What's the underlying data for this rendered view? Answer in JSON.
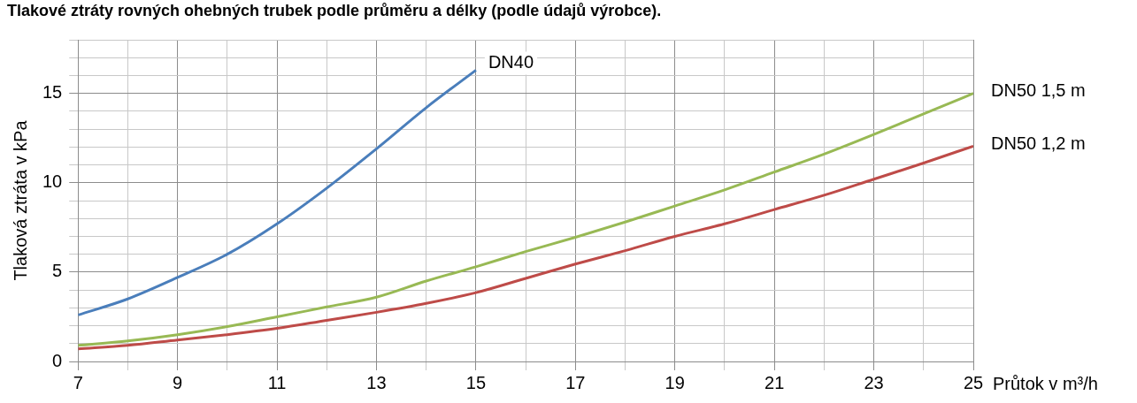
{
  "chart_data": {
    "type": "line",
    "title": "Tlakové ztráty rovných ohebných trubek podle průměru a délky (podle údajů výrobce).",
    "xlabel": "Průtok v m³/h",
    "ylabel": "Tlaková ztráta v kPa",
    "x": [
      7,
      8,
      9,
      10,
      11,
      12,
      13,
      14,
      15,
      16,
      17,
      18,
      19,
      20,
      21,
      22,
      23,
      24,
      25
    ],
    "series": [
      {
        "name": "DN40",
        "color": "#4a7ebb",
        "x": [
          7,
          8,
          9,
          10,
          11,
          12,
          13,
          14,
          15
        ],
        "values": [
          2.6,
          3.5,
          4.7,
          6.0,
          7.7,
          9.7,
          11.9,
          14.2,
          16.3
        ]
      },
      {
        "name": "DN50 1,5 m",
        "color": "#98b954",
        "values": [
          0.9,
          1.15,
          1.5,
          1.95,
          2.5,
          3.05,
          3.6,
          4.5,
          5.3,
          6.15,
          6.95,
          7.8,
          8.7,
          9.6,
          10.6,
          11.6,
          12.7,
          13.85,
          15.0
        ]
      },
      {
        "name": "DN50 1,2 m",
        "color": "#be4b48",
        "values": [
          0.7,
          0.9,
          1.2,
          1.5,
          1.85,
          2.3,
          2.75,
          3.25,
          3.85,
          4.65,
          5.45,
          6.2,
          7.0,
          7.7,
          8.5,
          9.3,
          10.2,
          11.1,
          12.05
        ]
      }
    ],
    "xlim": [
      7,
      25
    ],
    "xticks": [
      7,
      {
        "value": 8,
        "label": null
      },
      9,
      {
        "value": 10,
        "label": null
      },
      11,
      {
        "value": 12,
        "label": null
      },
      13,
      {
        "value": 14,
        "label": null
      },
      15,
      {
        "value": 16,
        "label": null
      },
      17,
      {
        "value": 18,
        "label": null
      },
      19,
      {
        "value": 20,
        "label": null
      },
      21,
      {
        "value": 22,
        "label": null
      },
      23,
      {
        "value": 24,
        "label": null
      },
      25
    ],
    "ylim": [
      0,
      18
    ],
    "yticks": [
      0,
      {
        "value": 1,
        "label": null
      },
      {
        "value": 2,
        "label": null
      },
      {
        "value": 3,
        "label": null
      },
      {
        "value": 4,
        "label": null
      },
      5,
      {
        "value": 6,
        "label": null
      },
      {
        "value": 7,
        "label": null
      },
      {
        "value": 8,
        "label": null
      },
      {
        "value": 9,
        "label": null
      },
      10,
      {
        "value": 11,
        "label": null
      },
      {
        "value": 12,
        "label": null
      },
      {
        "value": 13,
        "label": null
      },
      {
        "value": 14,
        "label": null
      },
      15,
      {
        "value": 16,
        "label": null
      },
      {
        "value": 17,
        "label": null
      },
      {
        "value": 18,
        "label": null
      }
    ],
    "grid": true,
    "legend": false,
    "marker": "none",
    "line_style": "solid"
  }
}
